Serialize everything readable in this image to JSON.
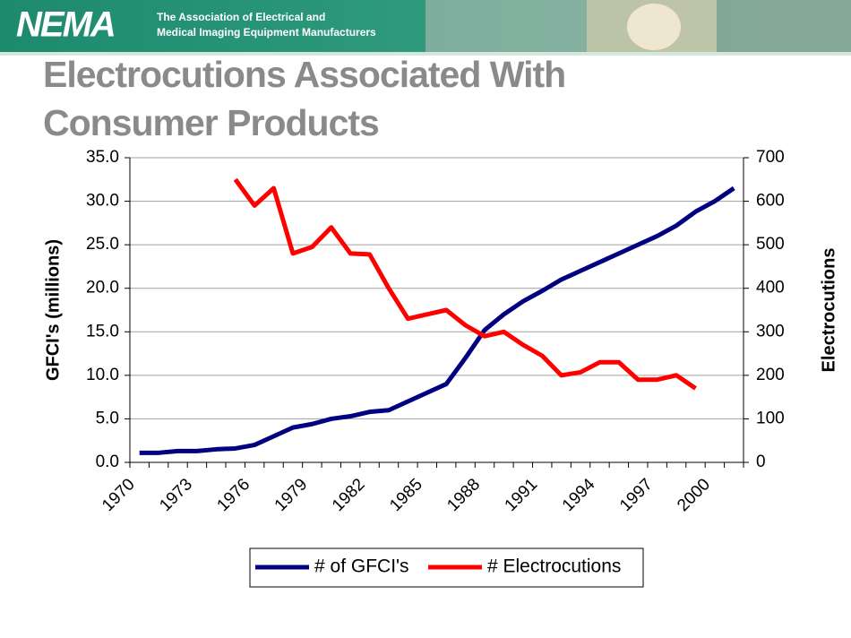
{
  "header": {
    "logo": "NEMA",
    "tagline": [
      "The Association of Electrical and",
      "Medical Imaging Equipment Manufacturers"
    ]
  },
  "chart_data": {
    "type": "line",
    "title": "Electrocutions Associated With Consumer Products",
    "ylabel": "GFCI's (millions)",
    "y2label": "Electrocutions",
    "categories": [
      "1970",
      null,
      null,
      "1973",
      null,
      null,
      "1976",
      null,
      null,
      "1979",
      null,
      null,
      "1982",
      null,
      null,
      "1985",
      null,
      null,
      "1988",
      null,
      null,
      "1991",
      null,
      null,
      "1994",
      null,
      null,
      "1997",
      null,
      null,
      "2000",
      null
    ],
    "series": [
      {
        "name": "# of GFCI's",
        "color": "#000080",
        "axis": "y",
        "values": [
          1.1,
          1.1,
          1.3,
          1.3,
          1.5,
          1.6,
          2.0,
          3.0,
          4.0,
          4.4,
          5.0,
          5.3,
          5.8,
          6.0,
          7.0,
          8.0,
          9.0,
          12.0,
          15.2,
          17.0,
          18.5,
          19.7,
          21.0,
          22.0,
          23.0,
          24.0,
          25.0,
          26.0,
          27.2,
          28.8,
          30.0,
          31.5
        ]
      },
      {
        "name": "# Electrocutions",
        "color": "#ff0000",
        "axis": "y2",
        "values": [
          null,
          null,
          null,
          null,
          null,
          650,
          590,
          630,
          480,
          495,
          540,
          480,
          478,
          400,
          330,
          340,
          350,
          315,
          290,
          300,
          270,
          245,
          200,
          207,
          230,
          230,
          190,
          190,
          200,
          170,
          null,
          null
        ]
      }
    ],
    "ylim": [
      0,
      35
    ],
    "yticks": [
      {
        "value": 0,
        "label": "0.0"
      },
      {
        "value": 5,
        "label": "5.0"
      },
      {
        "value": 10,
        "label": "10.0"
      },
      {
        "value": 15,
        "label": "15.0"
      },
      {
        "value": 20,
        "label": "20.0"
      },
      {
        "value": 25,
        "label": "25.0"
      },
      {
        "value": 30,
        "label": "30.0"
      },
      {
        "value": 35,
        "label": "35.0"
      }
    ],
    "y2lim": [
      0,
      700
    ],
    "y2ticks": [
      0,
      100,
      200,
      300,
      400,
      500,
      600,
      700
    ],
    "grid": true
  }
}
